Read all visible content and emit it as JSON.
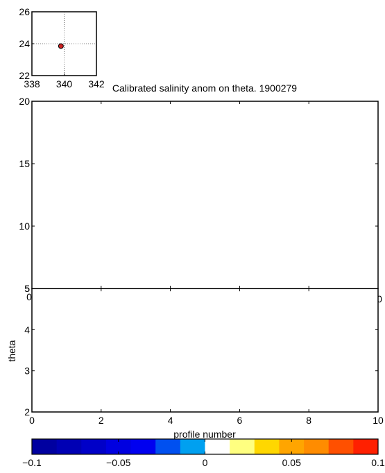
{
  "chart_data": [
    {
      "type": "scatter",
      "title": "",
      "xlabel": "",
      "ylabel": "",
      "xlim": [
        338,
        342
      ],
      "ylim": [
        22,
        26
      ],
      "xticks": [
        338,
        340,
        342
      ],
      "yticks": [
        22,
        24,
        26
      ],
      "x_tick_labels": [
        "338",
        "340",
        "342"
      ],
      "y_tick_labels": [
        "22",
        "24",
        "26"
      ],
      "grid": true,
      "points": [
        {
          "x": 339.8,
          "y": 23.85
        }
      ],
      "marker_color": "#cc2222"
    },
    {
      "type": "heatmap",
      "title": "Calibrated salinity anom on theta. 1900279",
      "xlabel": "",
      "ylabel": "",
      "xlim": [
        0,
        10
      ],
      "ylim": [
        5,
        20
      ],
      "yticks": [
        5,
        10,
        15,
        20
      ],
      "y_tick_labels": [
        "5",
        "10",
        "15",
        "20"
      ],
      "x_tick_labels": [
        "0",
        "0"
      ],
      "values": []
    },
    {
      "type": "heatmap",
      "title": "",
      "xlabel": "profile number",
      "ylabel": "theta",
      "xlim": [
        0,
        10
      ],
      "ylim": [
        2,
        5
      ],
      "xticks": [
        0,
        2,
        4,
        6,
        8,
        10
      ],
      "yticks": [
        2,
        3,
        4,
        5
      ],
      "x_tick_labels": [
        "0",
        "2",
        "4",
        "6",
        "8",
        "10"
      ],
      "y_tick_labels": [
        "2",
        "3",
        "4",
        "5"
      ],
      "values": []
    },
    {
      "type": "colorbar",
      "range": [
        -0.1,
        0.1
      ],
      "ticks": [
        -0.1,
        -0.05,
        0,
        0.05,
        0.1
      ],
      "tick_labels": [
        "−0.1",
        "−0.05",
        "0",
        "0.05",
        "0.1"
      ],
      "colors": [
        "#0000a0",
        "#0000b4",
        "#0000c8",
        "#0000e0",
        "#0000f0",
        "#0050f0",
        "#00a0f0",
        "#ffffff",
        "#ffff80",
        "#ffd700",
        "#ffa500",
        "#ff8c00",
        "#ff5000",
        "#ff2000"
      ]
    }
  ]
}
